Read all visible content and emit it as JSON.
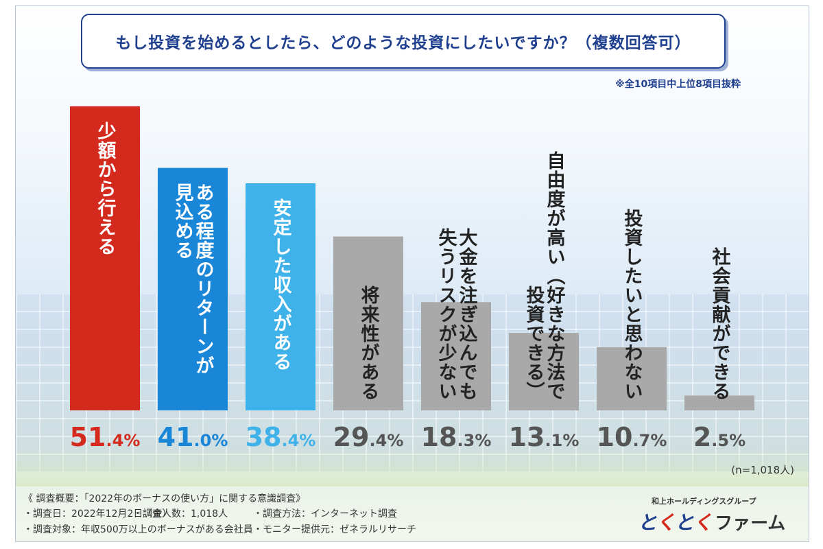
{
  "title": "もし投資を始めるとしたら、どのような投資にしたいですか？（複数回答可）",
  "subnote": "※全10項目中上位8項目抜粋",
  "sample_note": "(n=1,018人)",
  "colors": {
    "title": "#1f3f8f",
    "bars": [
      "#d42a1d",
      "#1a86d8",
      "#3fb2ea",
      "#a9a9a9",
      "#a9a9a9",
      "#a9a9a9",
      "#a9a9a9",
      "#a9a9a9"
    ]
  },
  "chart_data": {
    "type": "bar",
    "title": "もし投資を始めるとしたら、どのような投資にしたいですか？（複数回答可）",
    "categories": [
      "少額から行える",
      "ある程度のリターンが見込める",
      "安定した収入がある",
      "将来性がある",
      "大金を注ぎ込んでも失うリスクが少ない",
      "自由度が高い（好きな方法で投資できる）",
      "投資したいと思わない",
      "社会貢献ができる"
    ],
    "category_lines": [
      [
        "少額から行える"
      ],
      [
        "ある程度のリターンが",
        "見込める"
      ],
      [
        "安定した収入がある"
      ],
      [
        "将来性がある"
      ],
      [
        "大金を注ぎ込んでも",
        "失うリスクが少ない"
      ],
      [
        "自由度が高い（好きな方法で",
        "投資できる）"
      ],
      [
        "投資したいと思わない"
      ],
      [
        "社会貢献ができる"
      ]
    ],
    "values": [
      51.4,
      41.0,
      38.4,
      29.4,
      18.3,
      13.1,
      10.7,
      2.5
    ],
    "value_labels": [
      {
        "main": "51",
        "dec": ".4%"
      },
      {
        "main": "41",
        "dec": ".0%"
      },
      {
        "main": "38",
        "dec": ".4%"
      },
      {
        "main": "29",
        "dec": ".4%"
      },
      {
        "main": "18",
        "dec": ".3%"
      },
      {
        "main": "13",
        "dec": ".1%"
      },
      {
        "main": "10",
        "dec": ".7%"
      },
      {
        "main": "2",
        "dec": ".5%"
      }
    ],
    "unit": "%",
    "ylim": [
      0,
      51.4
    ],
    "grid": false,
    "xlabel": "",
    "ylabel": ""
  },
  "footer": {
    "heading": "《 調査概要：「2022年のボーナスの使い方」に関する意識調査》",
    "date": "・調査日：2022年12月2日（金）",
    "count": "・調査人数：1,018人",
    "method": "・調査方法：インターネット調査",
    "target": "・調査対象：年収500万以上のボーナスがある会社員",
    "provider": "・モニター提供元：ゼネラルリサーチ"
  },
  "logo": {
    "sub": "和上ホールディングスグループ",
    "part1": "と",
    "part2": "く",
    "part3": "と",
    "part4": "く",
    "part5": "ファーム",
    "colors": [
      "#1f3f8f",
      "#d42a1d",
      "#1f3f8f",
      "#d42a1d"
    ]
  }
}
